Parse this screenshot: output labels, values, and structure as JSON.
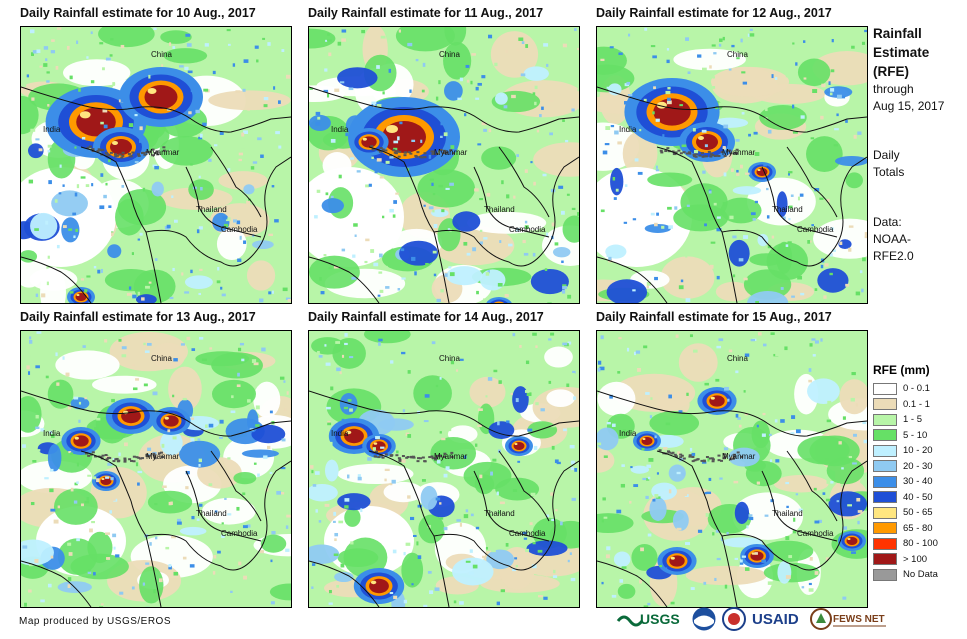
{
  "panels": [
    {
      "title": "Daily Rainfall estimate for 10 Aug., 2017"
    },
    {
      "title": "Daily Rainfall estimate for 11 Aug., 2017"
    },
    {
      "title": "Daily Rainfall estimate for 12 Aug., 2017"
    },
    {
      "title": "Daily Rainfall estimate for 13 Aug., 2017"
    },
    {
      "title": "Daily Rainfall estimate for 14 Aug., 2017"
    },
    {
      "title": "Daily Rainfall estimate for 15 Aug., 2017"
    }
  ],
  "country_labels": {
    "china": "China",
    "india": "India",
    "myanmar": "Myanmar",
    "thailand": "Thailand",
    "cambodia": "Cambodia"
  },
  "side": {
    "title1": "Rainfall",
    "title2": "Estimate",
    "title3": "(RFE)",
    "through": "through",
    "date": "Aug 15, 2017",
    "daily1": "Daily",
    "daily2": "Totals",
    "data1": "Data:",
    "data2": "NOAA-",
    "data3": "RFE2.0"
  },
  "legend": {
    "title": "RFE (mm)",
    "items": [
      {
        "label": "0 - 0.1",
        "color": "#ffffff"
      },
      {
        "label": "0.1 - 1",
        "color": "#ecdcb8"
      },
      {
        "label": "1 - 5",
        "color": "#b8f5a8"
      },
      {
        "label": "5 - 10",
        "color": "#66e066"
      },
      {
        "label": "10 - 20",
        "color": "#bff0ff"
      },
      {
        "label": "20 - 30",
        "color": "#8fcaf2"
      },
      {
        "label": "30 - 40",
        "color": "#3c8ee8"
      },
      {
        "label": "40 - 50",
        "color": "#1f4fd6"
      },
      {
        "label": "50 - 65",
        "color": "#ffe680"
      },
      {
        "label": "65 - 80",
        "color": "#ff9900"
      },
      {
        "label": "80 - 100",
        "color": "#ff3300"
      },
      {
        "label": "> 100",
        "color": "#a01818"
      },
      {
        "label": "No Data",
        "color": "#999999"
      }
    ]
  },
  "credit": "Map produced by USGS/EROS",
  "logos": {
    "usgs": "USGS",
    "usaid": "USAID",
    "fews": "FEWS NET"
  }
}
